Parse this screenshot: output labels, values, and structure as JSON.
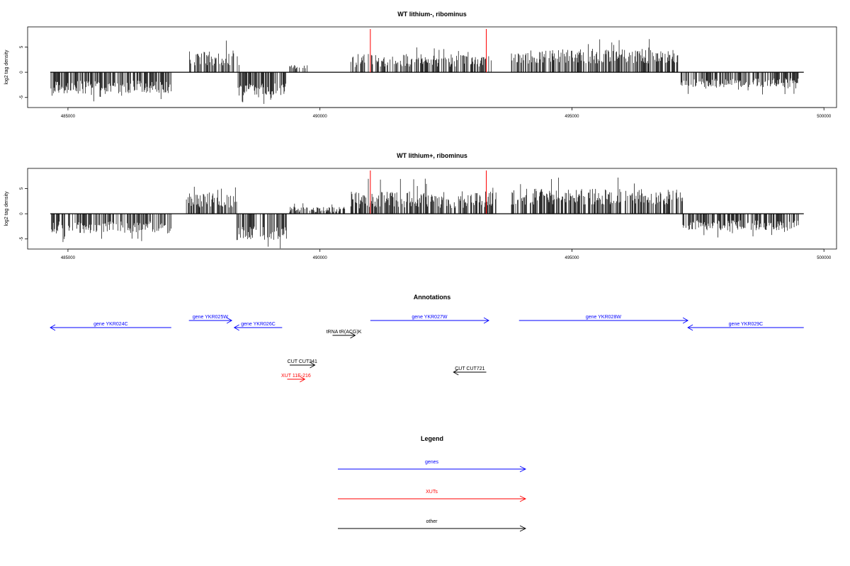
{
  "chart_data": [
    {
      "type": "bar",
      "title": "WT lithium-, ribominus",
      "ylabel": "log2 tag density",
      "xlabel": "",
      "xlim": [
        484200,
        500250
      ],
      "ylim": [
        -7,
        9
      ],
      "x_ticks": [
        "485000",
        "490000",
        "495000",
        "500000"
      ],
      "y_ticks": [
        "-5",
        "0",
        "5"
      ],
      "grid": false,
      "markers": [
        {
          "x": 491000,
          "color": "#ff0000"
        },
        {
          "x": 493300,
          "color": "#ff0000"
        }
      ],
      "profile": [
        {
          "from": 484650,
          "to": 487050,
          "mean": -2.8,
          "spread": 1.3
        },
        {
          "from": 487400,
          "to": 488400,
          "mean": 2.6,
          "spread": 1.4
        },
        {
          "from": 488350,
          "to": 489350,
          "mean": -3.3,
          "spread": 1.2
        },
        {
          "from": 489400,
          "to": 489750,
          "mean": 1.0,
          "spread": 0.5
        },
        {
          "from": 490600,
          "to": 493400,
          "mean": 2.2,
          "spread": 1.3
        },
        {
          "from": 493800,
          "to": 497100,
          "mean": 3.0,
          "spread": 1.4
        },
        {
          "from": 497150,
          "to": 499500,
          "mean": -2.0,
          "spread": 0.9
        }
      ]
    },
    {
      "type": "bar",
      "title": "WT lithium+, ribominus",
      "ylabel": "log2 tag density",
      "xlabel": "",
      "xlim": [
        484200,
        500250
      ],
      "ylim": [
        -7,
        9
      ],
      "x_ticks": [
        "485000",
        "490000",
        "495000",
        "500000"
      ],
      "y_ticks": [
        "-5",
        "0",
        "5"
      ],
      "grid": false,
      "markers": [
        {
          "x": 491000,
          "color": "#ff0000"
        },
        {
          "x": 493300,
          "color": "#ff0000"
        }
      ],
      "profile": [
        {
          "from": 484650,
          "to": 487050,
          "mean": -2.6,
          "spread": 1.2
        },
        {
          "from": 487350,
          "to": 488400,
          "mean": 2.5,
          "spread": 1.4
        },
        {
          "from": 488350,
          "to": 489350,
          "mean": -3.8,
          "spread": 1.4
        },
        {
          "from": 489400,
          "to": 490500,
          "mean": 0.8,
          "spread": 0.5
        },
        {
          "from": 490600,
          "to": 493500,
          "mean": 2.6,
          "spread": 1.7
        },
        {
          "from": 493800,
          "to": 497200,
          "mean": 3.2,
          "spread": 1.6
        },
        {
          "from": 497200,
          "to": 499500,
          "mean": -2.2,
          "spread": 1.0
        }
      ]
    }
  ],
  "annotations": {
    "title": "Annotations",
    "features": [
      {
        "label": "gene YKR024C",
        "from": 484650,
        "to": 487050,
        "dir": "left",
        "color": "#0000ff",
        "row": 2
      },
      {
        "label": "gene YKR025W",
        "from": 487400,
        "to": 488250,
        "dir": "right",
        "color": "#0000ff",
        "row": 1
      },
      {
        "label": "gene YKR026C",
        "from": 488300,
        "to": 489250,
        "dir": "left",
        "color": "#0000ff",
        "row": 2
      },
      {
        "label": "gene YKR027W",
        "from": 491000,
        "to": 493350,
        "dir": "right",
        "color": "#0000ff",
        "row": 1
      },
      {
        "label": "gene YKR028W",
        "from": 493950,
        "to": 497300,
        "dir": "right",
        "color": "#0000ff",
        "row": 1
      },
      {
        "label": "gene YKR029C",
        "from": 497300,
        "to": 499600,
        "dir": "left",
        "color": "#0000ff",
        "row": 2
      },
      {
        "label": "tRNA tR(ACG)K",
        "from": 490250,
        "to": 490700,
        "dir": "right",
        "color": "#000000",
        "row": 3
      },
      {
        "label": "CUT CUT341",
        "from": 489400,
        "to": 489900,
        "dir": "right",
        "color": "#000000",
        "row": 4
      },
      {
        "label": "XUT 11E-216",
        "from": 489350,
        "to": 489700,
        "dir": "right",
        "color": "#ff0000",
        "row": 5
      },
      {
        "label": "CUT CUT721",
        "from": 492650,
        "to": 493300,
        "dir": "left",
        "color": "#000000",
        "row": 6
      }
    ]
  },
  "legend": {
    "title": "Legend",
    "items": [
      {
        "label": "genes",
        "color": "#0000ff"
      },
      {
        "label": "XUTs",
        "color": "#ff0000"
      },
      {
        "label": "other",
        "color": "#000000"
      }
    ]
  }
}
